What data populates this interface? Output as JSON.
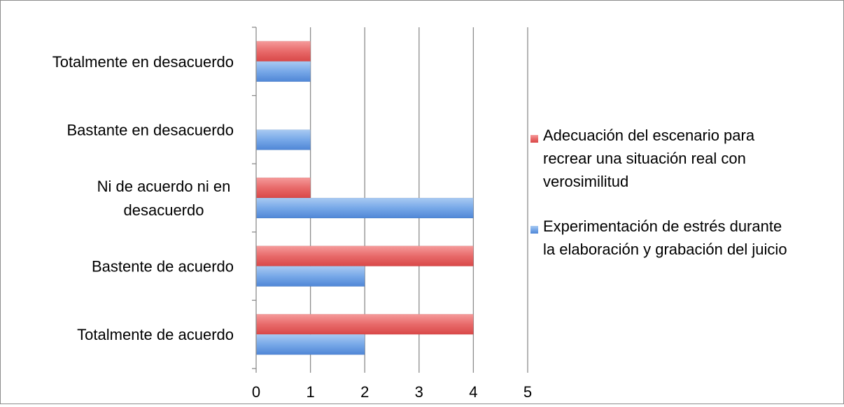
{
  "chart_data": {
    "type": "bar",
    "orientation": "horizontal",
    "categories": [
      "Totalmente en desacuerdo",
      "Bastante en desacuerdo",
      "Ni de acuerdo ni en desacuerdo",
      "Bastente de acuerdo",
      "Totalmente de acuerdo"
    ],
    "category_label_lines": [
      [
        "Totalmente en desacuerdo"
      ],
      [
        "Bastante en desacuerdo"
      ],
      [
        "Ni de acuerdo ni en",
        "desacuerdo"
      ],
      [
        "Bastente de acuerdo"
      ],
      [
        "Totalmente de acuerdo"
      ]
    ],
    "series": [
      {
        "name": "Adecuación del escenario para recrear una situación real con verosimilitud",
        "legend_lines": [
          "Adecuación del escenario para",
          "recrear una situación real con",
          "verosimilitud"
        ],
        "values": [
          1,
          0,
          1,
          4,
          4
        ],
        "color": "#e05252"
      },
      {
        "name": "Experimentación de estrés durante la elaboración y grabación del juicio",
        "legend_lines": [
          "Experimentación de estrés durante",
          "la elaboración y grabación del juicio"
        ],
        "values": [
          1,
          1,
          4,
          2,
          2
        ],
        "color": "#5b93dc"
      }
    ],
    "xlim": [
      0,
      5
    ],
    "xticks": [
      0,
      1,
      2,
      3,
      4,
      5
    ],
    "grid": true,
    "legend_position": "right",
    "title": "",
    "xlabel": "",
    "ylabel": ""
  }
}
